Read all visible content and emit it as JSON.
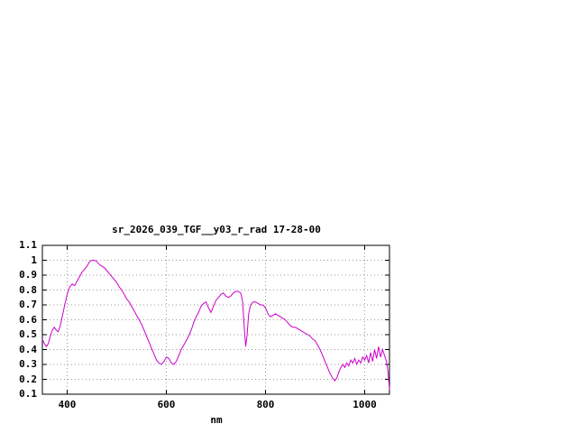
{
  "chart_data": {
    "type": "line",
    "title": "sr_2026_039_TGF__y03_r_rad 17-28-00",
    "xlabel": "nm",
    "ylabel": "",
    "xlim": [
      350,
      1050
    ],
    "ylim": [
      0.1,
      1.1
    ],
    "xticks": [
      "400",
      "600",
      "800",
      "1000"
    ],
    "yticks": [
      "0.1",
      "0.2",
      "0.3",
      "0.4",
      "0.5",
      "0.6",
      "0.7",
      "0.8",
      "0.9",
      "1",
      "1.1"
    ],
    "grid": true,
    "legend": "none",
    "series": [
      {
        "name": "sr_2026_039_TGF__y03_r_rad",
        "color": "#cc00cc",
        "x": [
          350,
          354,
          358,
          362,
          366,
          370,
          374,
          378,
          382,
          386,
          390,
          395,
          400,
          405,
          410,
          415,
          420,
          425,
          430,
          435,
          440,
          445,
          450,
          455,
          460,
          465,
          470,
          475,
          480,
          485,
          490,
          495,
          500,
          505,
          510,
          515,
          520,
          525,
          530,
          535,
          540,
          545,
          550,
          555,
          560,
          565,
          570,
          575,
          580,
          585,
          590,
          595,
          600,
          605,
          610,
          615,
          620,
          625,
          630,
          635,
          640,
          645,
          650,
          655,
          660,
          665,
          670,
          675,
          680,
          685,
          690,
          695,
          700,
          705,
          710,
          715,
          720,
          725,
          730,
          735,
          740,
          745,
          750,
          754,
          757,
          760,
          763,
          766,
          770,
          775,
          780,
          785,
          790,
          795,
          800,
          805,
          810,
          815,
          820,
          825,
          830,
          835,
          840,
          845,
          850,
          855,
          860,
          865,
          870,
          875,
          880,
          885,
          890,
          895,
          900,
          905,
          910,
          915,
          920,
          925,
          930,
          935,
          940,
          944,
          948,
          952,
          956,
          960,
          964,
          968,
          972,
          976,
          980,
          984,
          988,
          992,
          996,
          1000,
          1004,
          1008,
          1012,
          1016,
          1020,
          1024,
          1028,
          1032,
          1036,
          1040,
          1044,
          1047,
          1050
        ],
        "y": [
          0.47,
          0.44,
          0.42,
          0.44,
          0.49,
          0.53,
          0.55,
          0.53,
          0.52,
          0.56,
          0.62,
          0.7,
          0.77,
          0.82,
          0.84,
          0.83,
          0.86,
          0.89,
          0.92,
          0.94,
          0.96,
          0.99,
          1.0,
          1.0,
          0.99,
          0.97,
          0.96,
          0.95,
          0.93,
          0.91,
          0.89,
          0.87,
          0.85,
          0.82,
          0.8,
          0.77,
          0.74,
          0.72,
          0.69,
          0.66,
          0.63,
          0.6,
          0.57,
          0.53,
          0.49,
          0.45,
          0.41,
          0.37,
          0.33,
          0.31,
          0.3,
          0.32,
          0.35,
          0.34,
          0.31,
          0.3,
          0.32,
          0.36,
          0.4,
          0.43,
          0.46,
          0.49,
          0.53,
          0.58,
          0.62,
          0.65,
          0.69,
          0.71,
          0.72,
          0.68,
          0.65,
          0.69,
          0.73,
          0.75,
          0.77,
          0.78,
          0.76,
          0.75,
          0.76,
          0.78,
          0.79,
          0.79,
          0.78,
          0.72,
          0.55,
          0.42,
          0.5,
          0.64,
          0.7,
          0.72,
          0.72,
          0.71,
          0.7,
          0.7,
          0.68,
          0.64,
          0.62,
          0.63,
          0.64,
          0.63,
          0.62,
          0.61,
          0.6,
          0.58,
          0.56,
          0.55,
          0.55,
          0.54,
          0.53,
          0.52,
          0.51,
          0.5,
          0.49,
          0.47,
          0.46,
          0.43,
          0.4,
          0.36,
          0.32,
          0.28,
          0.24,
          0.21,
          0.19,
          0.21,
          0.25,
          0.28,
          0.3,
          0.28,
          0.31,
          0.29,
          0.33,
          0.31,
          0.34,
          0.3,
          0.33,
          0.31,
          0.35,
          0.33,
          0.36,
          0.31,
          0.38,
          0.32,
          0.4,
          0.34,
          0.42,
          0.35,
          0.4,
          0.36,
          0.32,
          0.25,
          0.13
        ]
      }
    ]
  }
}
